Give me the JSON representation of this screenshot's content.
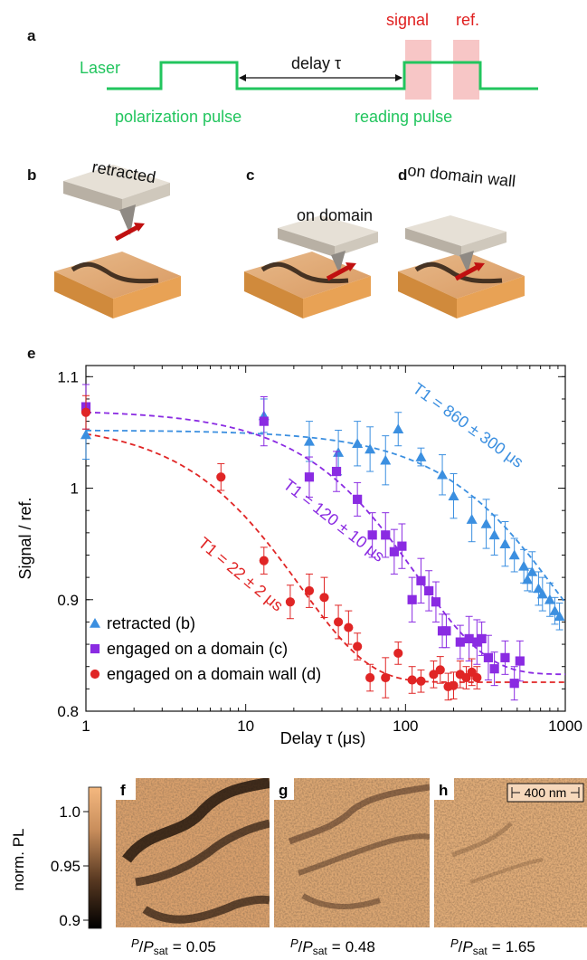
{
  "panels": {
    "a": "a",
    "b": "b",
    "c": "c",
    "d": "d",
    "e": "e",
    "f": "f",
    "g": "g",
    "h": "h"
  },
  "timing": {
    "laser": "Laser",
    "delay": "delay τ",
    "polarization_pulse": "polarization pulse",
    "reading_pulse": "reading pulse",
    "signal": "signal",
    "ref": "ref.",
    "colors": {
      "trace": "#22c55e",
      "window": "#f7c6c6",
      "red_text": "#e02020"
    }
  },
  "schematics": {
    "b_label": "retracted",
    "c_label": "on domain",
    "d_label": "on domain wall"
  },
  "chart_data": {
    "type": "scatter",
    "xscale": "log",
    "xlim": [
      1,
      1000
    ],
    "ylim": [
      0.8,
      1.11
    ],
    "xlabel": "Delay τ (μs)",
    "ylabel": "Signal / ref.",
    "xticks": [
      "1",
      "10",
      "100",
      "1000"
    ],
    "yticks": [
      "0.8",
      "0.9",
      "1",
      "1.1"
    ],
    "legend_position": "bottom-left",
    "series": [
      {
        "name": "retracted (b)",
        "marker": "triangle",
        "color": "#3b8fe0",
        "fit_label": "T1 = 860 ± 300 μs",
        "fit": {
          "T1": 860,
          "A": 0.225,
          "C": 0.827
        },
        "x": [
          1,
          13,
          25,
          38,
          50,
          60,
          75,
          90,
          125,
          170,
          200,
          260,
          320,
          360,
          420,
          480,
          550,
          580,
          620,
          680,
          720,
          800,
          860,
          920
        ],
        "y": [
          1.048,
          1.065,
          1.042,
          1.032,
          1.04,
          1.035,
          1.025,
          1.053,
          1.028,
          1.012,
          0.993,
          0.972,
          0.968,
          0.958,
          0.95,
          0.94,
          0.93,
          0.918,
          0.925,
          0.91,
          0.905,
          0.9,
          0.89,
          0.885
        ],
        "err": [
          0.022,
          0.015,
          0.018,
          0.02,
          0.02,
          0.02,
          0.022,
          0.015,
          0.008,
          0.018,
          0.02,
          0.02,
          0.022,
          0.018,
          0.02,
          0.015,
          0.015,
          0.01,
          0.018,
          0.015,
          0.015,
          0.015,
          0.012,
          0.012
        ]
      },
      {
        "name": "engaged on a domain (c)",
        "marker": "square",
        "color": "#8a2be2",
        "fit_label": "T1 = 120 ± 10 μs",
        "fit": {
          "T1": 120,
          "A": 0.237,
          "C": 0.833
        },
        "x": [
          1,
          13,
          25,
          37,
          50,
          62,
          75,
          85,
          95,
          110,
          125,
          140,
          155,
          170,
          180,
          220,
          250,
          280,
          300,
          330,
          360,
          420,
          480,
          520
        ],
        "y": [
          1.073,
          1.06,
          1.01,
          1.015,
          0.99,
          0.958,
          0.958,
          0.943,
          0.948,
          0.9,
          0.917,
          0.908,
          0.898,
          0.872,
          0.872,
          0.862,
          0.865,
          0.862,
          0.865,
          0.848,
          0.838,
          0.848,
          0.825,
          0.845
        ],
        "err": [
          0.02,
          0.022,
          0.018,
          0.018,
          0.015,
          0.02,
          0.02,
          0.02,
          0.02,
          0.02,
          0.02,
          0.018,
          0.018,
          0.015,
          0.015,
          0.015,
          0.02,
          0.02,
          0.015,
          0.02,
          0.015,
          0.015,
          0.015,
          0.018
        ]
      },
      {
        "name": "engaged on a domain wall (d)",
        "marker": "circle",
        "color": "#e02525",
        "fit_label": "T1 = 22 ± 2 μs",
        "fit": {
          "T1": 22,
          "A": 0.233,
          "C": 0.826
        },
        "x": [
          1,
          7,
          13,
          19,
          25,
          31,
          38,
          44,
          50,
          60,
          75,
          90,
          110,
          125,
          150,
          165,
          185,
          200,
          220,
          240,
          260,
          280
        ],
        "y": [
          1.068,
          1.01,
          0.935,
          0.898,
          0.908,
          0.902,
          0.88,
          0.875,
          0.858,
          0.83,
          0.83,
          0.852,
          0.828,
          0.827,
          0.833,
          0.837,
          0.822,
          0.823,
          0.833,
          0.83,
          0.835,
          0.83
        ],
        "err": [
          0.015,
          0.012,
          0.012,
          0.015,
          0.015,
          0.018,
          0.015,
          0.015,
          0.012,
          0.012,
          0.018,
          0.01,
          0.012,
          0.01,
          0.012,
          0.012,
          0.012,
          0.012,
          0.012,
          0.01,
          0.012,
          0.01
        ]
      }
    ]
  },
  "maps": {
    "colorbar_label": "norm. PL",
    "colorbar_ticks": [
      "1.0",
      "0.95",
      "0.9"
    ],
    "colorbar_range": [
      0.89,
      1.02
    ],
    "scalebar": "400 nm",
    "captions": [
      {
        "panel": "f",
        "value": "0.05"
      },
      {
        "panel": "g",
        "value": "0.48"
      },
      {
        "panel": "h",
        "value": "1.65"
      }
    ],
    "ratio_prefix": "P",
    "ratio_sub": "sat",
    "equals": "="
  }
}
